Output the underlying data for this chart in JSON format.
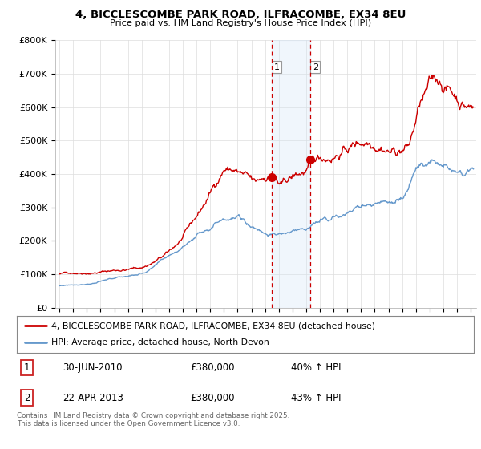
{
  "title": "4, BICCLESCOMBE PARK ROAD, ILFRACOMBE, EX34 8EU",
  "subtitle": "Price paid vs. HM Land Registry's House Price Index (HPI)",
  "legend_line1": "4, BICCLESCOMBE PARK ROAD, ILFRACOMBE, EX34 8EU (detached house)",
  "legend_line2": "HPI: Average price, detached house, North Devon",
  "table_rows": [
    {
      "num": "1",
      "date": "30-JUN-2010",
      "price": "£380,000",
      "hpi": "40% ↑ HPI"
    },
    {
      "num": "2",
      "date": "22-APR-2013",
      "price": "£380,000",
      "hpi": "43% ↑ HPI"
    }
  ],
  "footnote": "Contains HM Land Registry data © Crown copyright and database right 2025.\nThis data is licensed under the Open Government Licence v3.0.",
  "red_color": "#cc0000",
  "blue_color": "#6699cc",
  "vline_color": "#cc0000",
  "vline_shade_color": "#d0e4f7",
  "ylim": [
    0,
    800000
  ],
  "yticks": [
    0,
    100000,
    200000,
    300000,
    400000,
    500000,
    600000,
    700000,
    800000
  ],
  "ytick_labels": [
    "£0",
    "£100K",
    "£200K",
    "£300K",
    "£400K",
    "£500K",
    "£600K",
    "£700K",
    "£800K"
  ],
  "xmin": 1994.7,
  "xmax": 2025.4,
  "vline1_x": 2010.5,
  "vline2_x": 2013.3,
  "background_color": "#ffffff",
  "grid_color": "#dddddd"
}
